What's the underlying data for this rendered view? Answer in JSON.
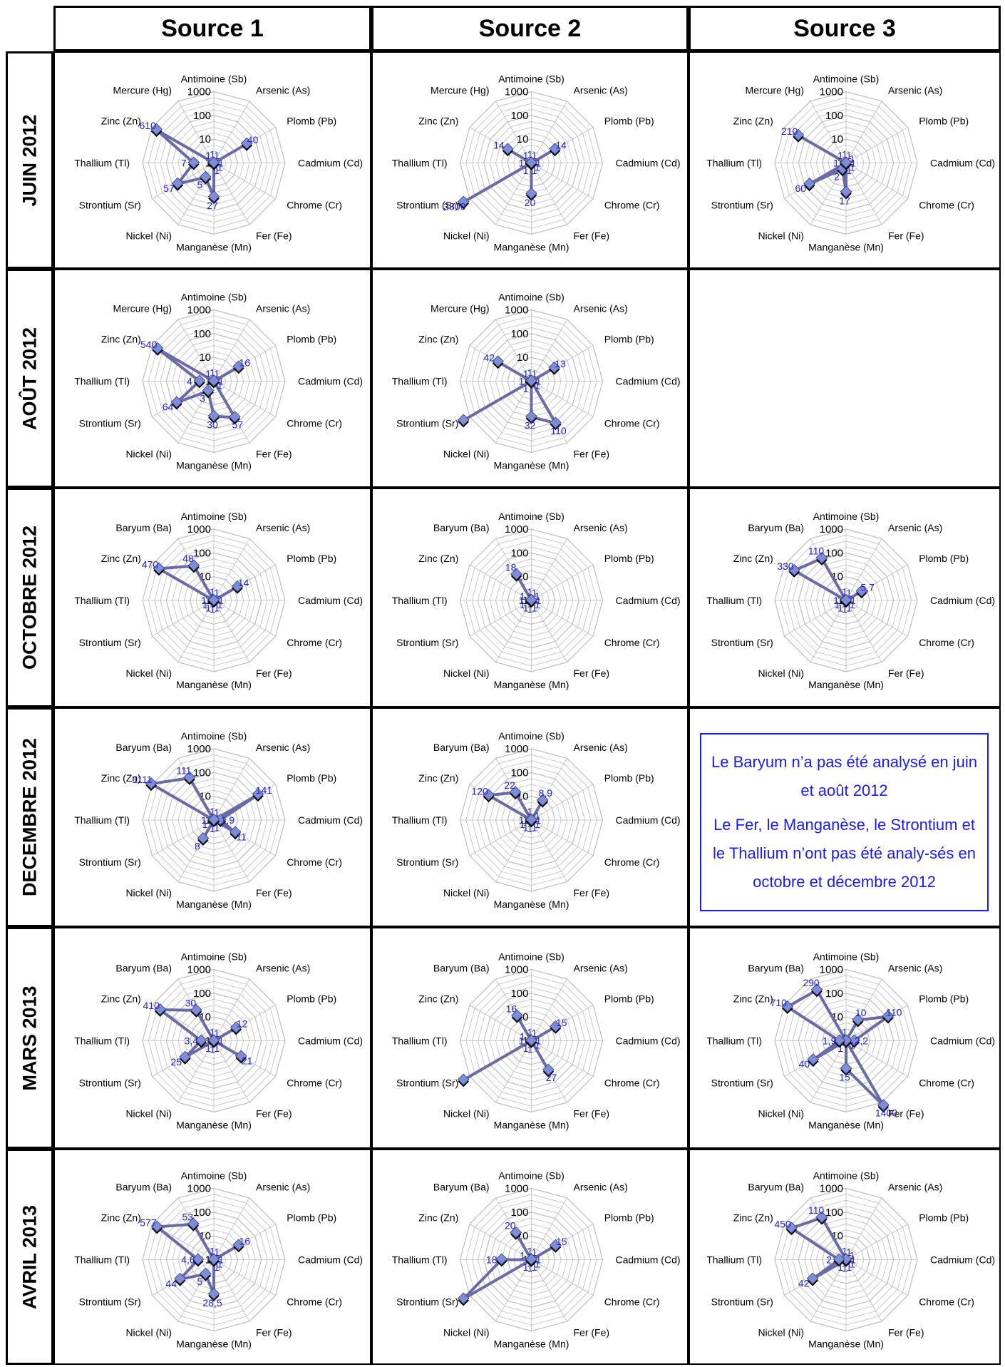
{
  "columns": [
    "Source 1",
    "Source 2",
    "Source 3"
  ],
  "rows": [
    "JUIN 2012",
    "AOÛT 2012",
    "OCTOBRE 2012",
    "DECEMBRE 2012",
    "MARS 2013",
    "AVRIL 2013"
  ],
  "note": {
    "line1": "Le Baryum n’a pas été analysé en juin et août 2012",
    "line2": "Le Fer, le Manganèse, le Strontium et le Thallium n’ont pas été analy-sés en octobre et décembre 2012"
  },
  "colors": {
    "series_line": "#6a6aa8",
    "marker": "#7b8fd6",
    "value_label": "#2020e0",
    "grid": "#bdbdbd",
    "note": "#1a1aff"
  },
  "axis_ticks": [
    "1",
    "10",
    "100",
    "1000"
  ],
  "chart_data": [
    {
      "type": "radar",
      "row": "JUIN 2012",
      "column": "Source 1",
      "scale": "log",
      "range": [
        1,
        1000
      ],
      "axes": [
        "Antimoine (Sb)",
        "Arsenic (As)",
        "Plomb (Pb)",
        "Cadmium (Cd)",
        "Chrome (Cr)",
        "Fer (Fe)",
        "Manganèse (Mn)",
        "Nickel (Ni)",
        "Strontium (Sr)",
        "Thallium (Tl)",
        "Zinc (Zn)",
        "Mercure (Hg)"
      ],
      "values": [
        1,
        1,
        40,
        1,
        1,
        1,
        27,
        5,
        57,
        7,
        610,
        1
      ]
    },
    {
      "type": "radar",
      "row": "JUIN 2012",
      "column": "Source 2",
      "scale": "log",
      "range": [
        1,
        1000
      ],
      "axes": [
        "Antimoine (Sb)",
        "Arsenic (As)",
        "Plomb (Pb)",
        "Cadmium (Cd)",
        "Chrome (Cr)",
        "Fer (Fe)",
        "Manganèse (Mn)",
        "Nickel (Ni)",
        "Strontium (Sr)",
        "Thallium (Tl)",
        "Zinc (Zn)",
        "Mercure (Hg)"
      ],
      "values": [
        1,
        1,
        14,
        1,
        1,
        1,
        20,
        1,
        3300,
        1,
        14,
        1
      ]
    },
    {
      "type": "radar",
      "row": "JUIN 2012",
      "column": "Source 3",
      "scale": "log",
      "range": [
        1,
        1000
      ],
      "axes": [
        "Antimoine (Sb)",
        "Arsenic (As)",
        "Plomb (Pb)",
        "Cadmium (Cd)",
        "Chrome (Cr)",
        "Fer (Fe)",
        "Manganèse (Mn)",
        "Nickel (Ni)",
        "Strontium (Sr)",
        "Thallium (Tl)",
        "Zinc (Zn)",
        "Mercure (Hg)"
      ],
      "values": [
        1,
        1,
        1,
        1,
        1,
        1,
        17,
        2,
        60,
        1,
        210,
        1
      ]
    },
    {
      "type": "radar",
      "row": "AOÛT 2012",
      "column": "Source 1",
      "scale": "log",
      "range": [
        1,
        1000
      ],
      "axes": [
        "Antimoine (Sb)",
        "Arsenic (As)",
        "Plomb (Pb)",
        "Cadmium (Cd)",
        "Chrome (Cr)",
        "Fer (Fe)",
        "Manganèse (Mn)",
        "Nickel (Ni)",
        "Strontium (Sr)",
        "Thallium (Tl)",
        "Zinc (Zn)",
        "Mercure (Hg)"
      ],
      "values": [
        1,
        1,
        16,
        1,
        1,
        57,
        30,
        3,
        64,
        4,
        540,
        1
      ]
    },
    {
      "type": "radar",
      "row": "AOÛT 2012",
      "column": "Source 2",
      "scale": "log",
      "range": [
        1,
        1000
      ],
      "axes": [
        "Antimoine (Sb)",
        "Arsenic (As)",
        "Plomb (Pb)",
        "Cadmium (Cd)",
        "Chrome (Cr)",
        "Fer (Fe)",
        "Manganèse (Mn)",
        "Nickel (Ni)",
        "Strontium (Sr)",
        "Thallium (Tl)",
        "Zinc (Zn)",
        "Mercure (Hg)"
      ],
      "values": [
        1,
        1,
        13,
        1,
        1,
        110,
        32,
        1,
        3000,
        1,
        42,
        1
      ],
      "labels_hidden": [
        8
      ]
    },
    {
      "type": "radar",
      "row": "OCTOBRE 2012",
      "column": "Source 1",
      "scale": "log",
      "range": [
        1,
        1000
      ],
      "axes": [
        "Antimoine (Sb)",
        "Arsenic (As)",
        "Plomb (Pb)",
        "Cadmium (Cd)",
        "Chrome (Cr)",
        "Fer (Fe)",
        "Manganèse (Mn)",
        "Nickel (Ni)",
        "Strontium (Sr)",
        "Thallium (Tl)",
        "Zinc (Zn)",
        "Baryum (Ba)"
      ],
      "values": [
        1,
        1,
        14,
        1,
        1,
        1,
        1,
        1,
        1,
        1,
        470,
        48
      ]
    },
    {
      "type": "radar",
      "row": "OCTOBRE 2012",
      "column": "Source 2",
      "scale": "log",
      "range": [
        1,
        1000
      ],
      "axes": [
        "Antimoine (Sb)",
        "Arsenic (As)",
        "Plomb (Pb)",
        "Cadmium (Cd)",
        "Chrome (Cr)",
        "Fer (Fe)",
        "Manganèse (Mn)",
        "Nickel (Ni)",
        "Strontium (Sr)",
        "Thallium (Tl)",
        "Zinc (Zn)",
        "Baryum (Ba)"
      ],
      "values": [
        1,
        1,
        1,
        1,
        1,
        1,
        1,
        1,
        1,
        1,
        1,
        18
      ]
    },
    {
      "type": "radar",
      "row": "OCTOBRE 2012",
      "column": "Source 3",
      "scale": "log",
      "range": [
        1,
        1000
      ],
      "axes": [
        "Antimoine (Sb)",
        "Arsenic (As)",
        "Plomb (Pb)",
        "Cadmium (Cd)",
        "Chrome (Cr)",
        "Fer (Fe)",
        "Manganèse (Mn)",
        "Nickel (Ni)",
        "Strontium (Sr)",
        "Thallium (Tl)",
        "Zinc (Zn)",
        "Baryum (Ba)"
      ],
      "values": [
        1,
        1,
        5.7,
        1,
        1,
        1,
        1,
        1,
        1,
        1,
        330,
        110
      ],
      "value_labels": {
        "2": "5,7"
      }
    },
    {
      "type": "radar",
      "row": "DECEMBRE 2012",
      "column": "Source 1",
      "scale": "log",
      "range": [
        1,
        1000
      ],
      "axes": [
        "Antimoine (Sb)",
        "Arsenic (As)",
        "Plomb (Pb)",
        "Cadmium (Cd)",
        "Chrome (Cr)",
        "Fer (Fe)",
        "Manganèse (Mn)",
        "Nickel (Ni)",
        "Strontium (Sr)",
        "Thallium (Tl)",
        "Zinc (Zn)",
        "Baryum (Ba)"
      ],
      "values": [
        1,
        1,
        141,
        1.9,
        11,
        1,
        1,
        8,
        1,
        1,
        1111,
        111
      ],
      "value_labels": {
        "3": "1,9"
      }
    },
    {
      "type": "radar",
      "row": "DECEMBRE 2012",
      "column": "Source 2",
      "scale": "log",
      "range": [
        1,
        1000
      ],
      "axes": [
        "Antimoine (Sb)",
        "Arsenic (As)",
        "Plomb (Pb)",
        "Cadmium (Cd)",
        "Chrome (Cr)",
        "Fer (Fe)",
        "Manganèse (Mn)",
        "Nickel (Ni)",
        "Strontium (Sr)",
        "Thallium (Tl)",
        "Zinc (Zn)",
        "Baryum (Ba)"
      ],
      "values": [
        1,
        8.9,
        1,
        1,
        1,
        1,
        1,
        1,
        1,
        1,
        120,
        22
      ],
      "value_labels": {
        "1": "8,9"
      }
    },
    {
      "type": "radar",
      "row": "MARS 2013",
      "column": "Source 1",
      "scale": "log",
      "range": [
        1,
        1000
      ],
      "axes": [
        "Antimoine (Sb)",
        "Arsenic (As)",
        "Plomb (Pb)",
        "Cadmium (Cd)",
        "Chrome (Cr)",
        "Fer (Fe)",
        "Manganèse (Mn)",
        "Nickel (Ni)",
        "Strontium (Sr)",
        "Thallium (Tl)",
        "Zinc (Zn)",
        "Baryum (Ba)"
      ],
      "values": [
        1,
        1,
        12,
        1,
        21,
        1,
        1,
        1,
        25,
        3.4,
        410,
        30
      ],
      "value_labels": {
        "9": "3,4"
      }
    },
    {
      "type": "radar",
      "row": "MARS 2013",
      "column": "Source 2",
      "scale": "log",
      "range": [
        1,
        1000
      ],
      "axes": [
        "Antimoine (Sb)",
        "Arsenic (As)",
        "Plomb (Pb)",
        "Cadmium (Cd)",
        "Chrome (Cr)",
        "Fer (Fe)",
        "Manganèse (Mn)",
        "Nickel (Ni)",
        "Strontium (Sr)",
        "Thallium (Tl)",
        "Zinc (Zn)",
        "Baryum (Ba)"
      ],
      "values": [
        1,
        1,
        15,
        1,
        1,
        27,
        1,
        1,
        3000,
        1,
        1,
        16
      ],
      "labels_hidden": [
        8
      ]
    },
    {
      "type": "radar",
      "row": "MARS 2013",
      "column": "Source 3",
      "scale": "log",
      "range": [
        1,
        1000
      ],
      "axes": [
        "Antimoine (Sb)",
        "Arsenic (As)",
        "Plomb (Pb)",
        "Cadmium (Cd)",
        "Chrome (Cr)",
        "Fer (Fe)",
        "Manganèse (Mn)",
        "Nickel (Ni)",
        "Strontium (Sr)",
        "Thallium (Tl)",
        "Zinc (Zn)",
        "Baryum (Ba)"
      ],
      "values": [
        1,
        10,
        110,
        2.2,
        1,
        1400,
        15,
        1,
        40,
        1.9,
        710,
        290
      ],
      "value_labels": {
        "3": "2,2",
        "9": "1,9"
      }
    },
    {
      "type": "radar",
      "row": "AVRIL 2013",
      "column": "Source 1",
      "scale": "log",
      "range": [
        1,
        1000
      ],
      "axes": [
        "Antimoine (Sb)",
        "Arsenic (As)",
        "Plomb (Pb)",
        "Cadmium (Cd)",
        "Chrome (Cr)",
        "Fer (Fe)",
        "Manganèse (Mn)",
        "Nickel (Ni)",
        "Strontium (Sr)",
        "Thallium (Tl)",
        "Zinc (Zn)",
        "Baryum (Ba)"
      ],
      "values": [
        1,
        1,
        16,
        1,
        1,
        1,
        28.5,
        5,
        44,
        4.6,
        577,
        53
      ],
      "value_labels": {
        "6": "28,5",
        "9": "4,6"
      }
    },
    {
      "type": "radar",
      "row": "AVRIL 2013",
      "column": "Source 2",
      "scale": "log",
      "range": [
        1,
        1000
      ],
      "axes": [
        "Antimoine (Sb)",
        "Arsenic (As)",
        "Plomb (Pb)",
        "Cadmium (Cd)",
        "Chrome (Cr)",
        "Fer (Fe)",
        "Manganèse (Mn)",
        "Nickel (Ni)",
        "Strontium (Sr)",
        "Thallium (Tl)",
        "Zinc (Zn)",
        "Baryum (Ba)"
      ],
      "values": [
        1,
        1,
        15,
        1,
        1,
        1,
        1,
        1,
        3000,
        18,
        1,
        20
      ],
      "labels_hidden": [
        8
      ]
    },
    {
      "type": "radar",
      "row": "AVRIL 2013",
      "column": "Source 3",
      "scale": "log",
      "range": [
        1,
        1000
      ],
      "axes": [
        "Antimoine (Sb)",
        "Arsenic (As)",
        "Plomb (Pb)",
        "Cadmium (Cd)",
        "Chrome (Cr)",
        "Fer (Fe)",
        "Manganèse (Mn)",
        "Nickel (Ni)",
        "Strontium (Sr)",
        "Thallium (Tl)",
        "Zinc (Zn)",
        "Baryum (Ba)"
      ],
      "values": [
        1,
        1,
        1,
        1,
        1,
        1,
        1,
        1,
        42,
        2,
        450,
        110
      ]
    }
  ]
}
